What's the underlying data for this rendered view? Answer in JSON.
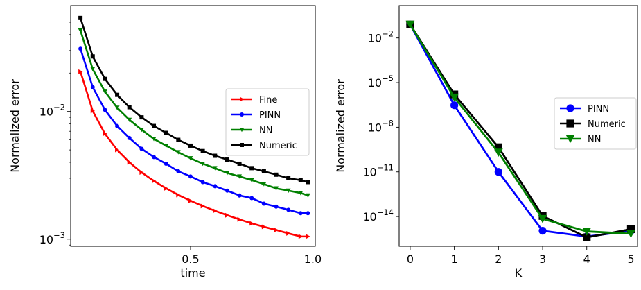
{
  "chart_data": [
    {
      "type": "line",
      "xlabel": "time",
      "ylabel": "Normalized error",
      "yscale": "log",
      "xlim": [
        0.01,
        1.01
      ],
      "ylim": [
        0.00088,
        0.0675
      ],
      "xticks": [
        {
          "value": 0.5,
          "label": "0.5"
        },
        {
          "value": 1.0,
          "label": "1.0"
        }
      ],
      "yticks": [
        {
          "value": 0.001,
          "base": "10",
          "exp": "−3"
        },
        {
          "value": 0.01,
          "base": "10",
          "exp": "−2"
        }
      ],
      "legend": {
        "position": "center-right"
      },
      "x": [
        0.05,
        0.1,
        0.15,
        0.2,
        0.25,
        0.3,
        0.35,
        0.4,
        0.45,
        0.5,
        0.55,
        0.6,
        0.65,
        0.7,
        0.75,
        0.8,
        0.85,
        0.9,
        0.95,
        0.98
      ],
      "series": [
        {
          "name": "Fine",
          "color": "#ff0000",
          "marker": "triangle-right",
          "values": [
            0.0205,
            0.0101,
            0.0067,
            0.005,
            0.004,
            0.00333,
            0.00286,
            0.0025,
            0.00222,
            0.002,
            0.00182,
            0.00167,
            0.00154,
            0.00143,
            0.00133,
            0.00125,
            0.00118,
            0.00111,
            0.00105,
            0.00105
          ]
        },
        {
          "name": "PINN",
          "color": "#0000ff",
          "marker": "circle",
          "values": [
            0.031,
            0.0155,
            0.0103,
            0.0077,
            0.0062,
            0.0051,
            0.0044,
            0.0039,
            0.0034,
            0.0031,
            0.0028,
            0.0026,
            0.0024,
            0.0022,
            0.0021,
            0.0019,
            0.0018,
            0.0017,
            0.0016,
            0.0016
          ]
        },
        {
          "name": "NN",
          "color": "#008000",
          "marker": "triangle-down",
          "values": [
            0.043,
            0.0215,
            0.0143,
            0.0107,
            0.0086,
            0.0072,
            0.0061,
            0.0054,
            0.0048,
            0.0043,
            0.0039,
            0.0036,
            0.0033,
            0.0031,
            0.0029,
            0.0027,
            0.0025,
            0.0024,
            0.0023,
            0.0022
          ]
        },
        {
          "name": "Numeric",
          "color": "#000000",
          "marker": "square",
          "values": [
            0.054,
            0.027,
            0.018,
            0.0135,
            0.0108,
            0.009,
            0.0077,
            0.0068,
            0.006,
            0.0054,
            0.0049,
            0.0045,
            0.0042,
            0.0039,
            0.0036,
            0.0034,
            0.0032,
            0.003,
            0.0029,
            0.0028
          ]
        }
      ]
    },
    {
      "type": "line",
      "xlabel": "K",
      "ylabel": "Normalized error",
      "yscale": "log",
      "xlim": [
        -0.25,
        5.15
      ],
      "ylim": [
        1e-16,
        1.5
      ],
      "xticks": [
        {
          "value": 0,
          "label": "0"
        },
        {
          "value": 1,
          "label": "1"
        },
        {
          "value": 2,
          "label": "2"
        },
        {
          "value": 3,
          "label": "3"
        },
        {
          "value": 4,
          "label": "4"
        },
        {
          "value": 5,
          "label": "5"
        }
      ],
      "yticks": [
        {
          "value": 1e-14,
          "base": "10",
          "exp": "−14"
        },
        {
          "value": 1e-11,
          "base": "10",
          "exp": "−11"
        },
        {
          "value": 1e-08,
          "base": "10",
          "exp": "−8"
        },
        {
          "value": 1e-05,
          "base": "10",
          "exp": "−5"
        },
        {
          "value": 0.01,
          "base": "10",
          "exp": "−2"
        }
      ],
      "legend": {
        "position": "center-right"
      },
      "x": [
        0,
        1,
        2,
        3,
        4,
        5
      ],
      "series": [
        {
          "name": "PINN",
          "color": "#0000ff",
          "marker": "circle",
          "values": [
            0.08,
            3e-07,
            1e-11,
            1.1e-15,
            4.5e-16,
            1.1e-15
          ]
        },
        {
          "name": "Numeric",
          "color": "#000000",
          "marker": "square",
          "values": [
            0.08,
            1.6e-06,
            4.5e-10,
            1.1e-14,
            4e-16,
            1.4e-15
          ]
        },
        {
          "name": "NN",
          "color": "#008000",
          "marker": "triangle-down",
          "values": [
            0.08,
            1e-06,
            2e-10,
            7e-15,
            1e-15,
            7e-16
          ]
        }
      ]
    }
  ]
}
